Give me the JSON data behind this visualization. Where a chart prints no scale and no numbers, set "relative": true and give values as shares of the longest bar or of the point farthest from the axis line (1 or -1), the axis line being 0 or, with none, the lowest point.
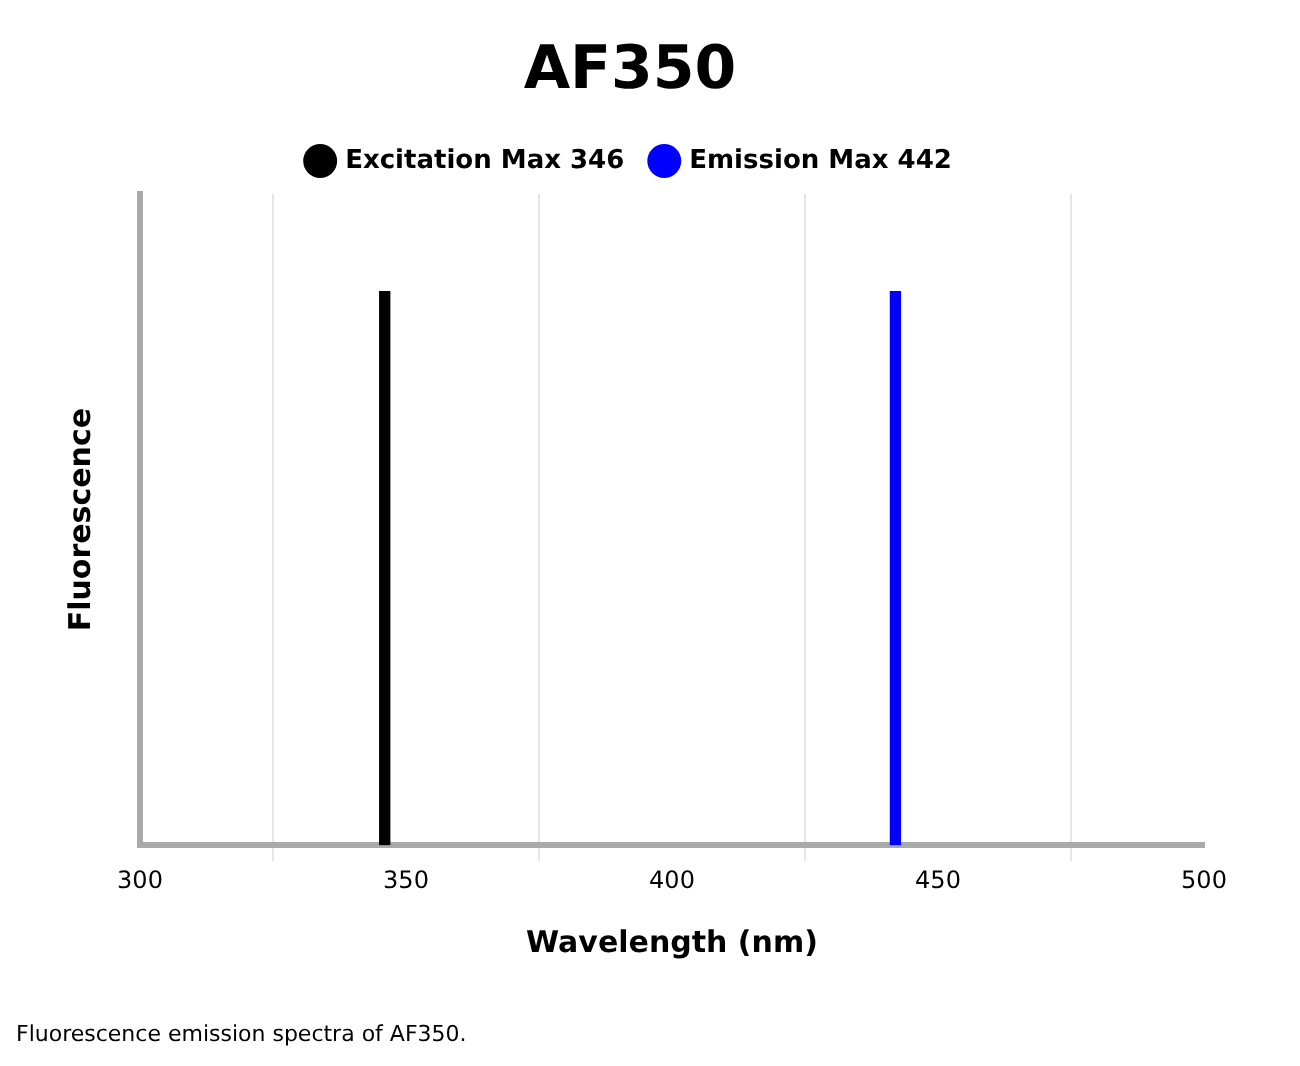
{
  "chart_data": {
    "type": "bar",
    "title": "AF350",
    "xlabel": "Wavelength (nm)",
    "ylabel": "Fluorescence",
    "relative": true,
    "series": [
      {
        "name": "Excitation Max 346",
        "color": "#000000",
        "x": [
          346
        ],
        "values": [
          1
        ]
      },
      {
        "name": "Emission Max 442",
        "color": "#0000ff",
        "x": [
          442
        ],
        "values": [
          1
        ]
      }
    ],
    "xlim": [
      300,
      500
    ],
    "xticks": [
      300,
      350,
      400,
      450,
      500
    ],
    "grid": "x",
    "legend": "top",
    "annotations": [
      "Fluorescence emission spectra of AF350."
    ]
  }
}
